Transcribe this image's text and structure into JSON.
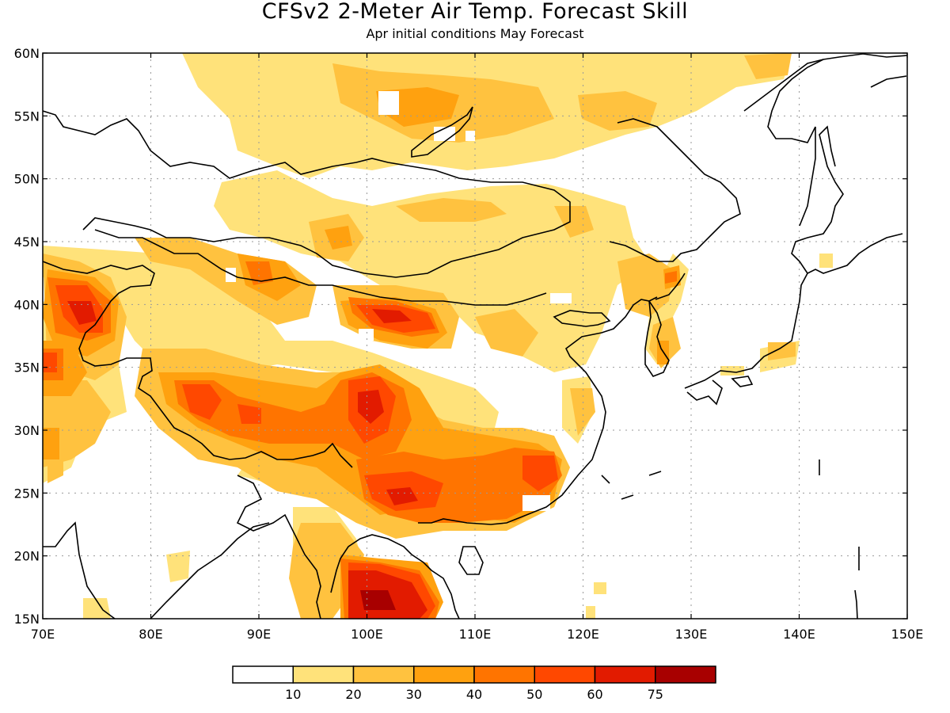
{
  "title": "CFSv2 2-Meter Air Temp. Forecast Skill",
  "subtitle": "Apr initial conditions  May Forecast",
  "map": {
    "lon_range": [
      70,
      150
    ],
    "lat_range": [
      15,
      60
    ],
    "lon_ticks": [
      "70E",
      "80E",
      "90E",
      "100E",
      "110E",
      "120E",
      "130E",
      "140E",
      "150E"
    ],
    "lat_ticks": [
      "60N",
      "55N",
      "50N",
      "45N",
      "40N",
      "35N",
      "30N",
      "25N",
      "20N",
      "15N"
    ],
    "grid": "dotted"
  },
  "colorbar": {
    "labels": [
      "10",
      "20",
      "30",
      "40",
      "50",
      "60",
      "75"
    ],
    "colors": [
      "#ffffff",
      "#ffe27a",
      "#ffc23f",
      "#ffa10f",
      "#ff7400",
      "#ff4800",
      "#e21b00",
      "#a80000"
    ]
  }
}
